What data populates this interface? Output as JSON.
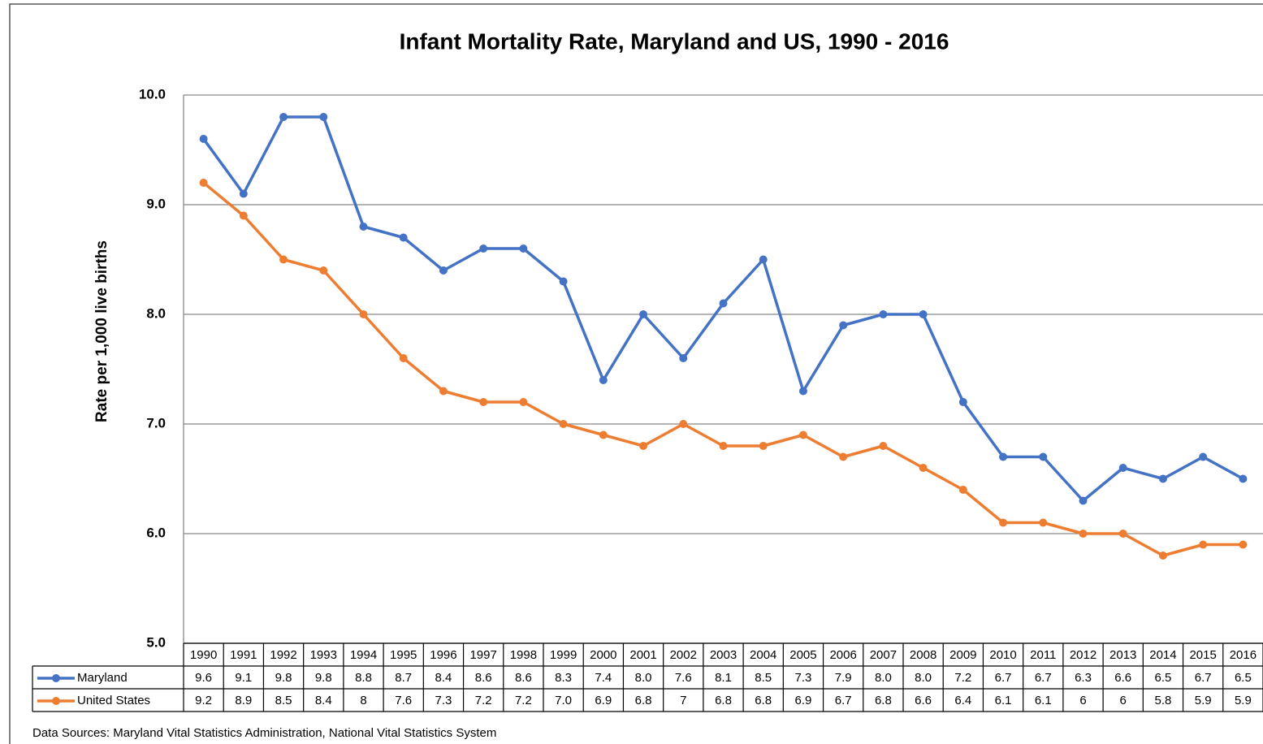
{
  "chart_data": {
    "type": "line",
    "title": "Infant Mortality Rate, Maryland and US, 1990 - 2016",
    "y_label": "Rate per 1,000 live births",
    "source": "Data Sources: Maryland Vital Statistics Administration, National Vital Statistics System",
    "categories": [
      "1990",
      "1991",
      "1992",
      "1993",
      "1994",
      "1995",
      "1996",
      "1997",
      "1998",
      "1999",
      "2000",
      "2001",
      "2002",
      "2003",
      "2004",
      "2005",
      "2006",
      "2007",
      "2008",
      "2009",
      "2010",
      "2011",
      "2012",
      "2013",
      "2014",
      "2015",
      "2016"
    ],
    "series": [
      {
        "name": "Maryland",
        "color": "#4472c4",
        "values": [
          9.6,
          9.1,
          9.8,
          9.8,
          8.8,
          8.7,
          8.4,
          8.6,
          8.6,
          8.3,
          7.4,
          8.0,
          7.6,
          8.1,
          8.5,
          7.3,
          7.9,
          8.0,
          8.0,
          7.2,
          6.7,
          6.7,
          6.3,
          6.6,
          6.5,
          6.7,
          6.5
        ],
        "value_labels": [
          "9.6",
          "9.1",
          "9.8",
          "9.8",
          "8.8",
          "8.7",
          "8.4",
          "8.6",
          "8.6",
          "8.3",
          "7.4",
          "8.0",
          "7.6",
          "8.1",
          "8.5",
          "7.3",
          "7.9",
          "8.0",
          "8.0",
          "7.2",
          "6.7",
          "6.7",
          "6.3",
          "6.6",
          "6.5",
          "6.7",
          "6.5"
        ]
      },
      {
        "name": "United States",
        "color": "#ed7d31",
        "values": [
          9.2,
          8.9,
          8.5,
          8.4,
          8,
          7.6,
          7.3,
          7.2,
          7.2,
          7.0,
          6.9,
          6.8,
          7,
          6.8,
          6.8,
          6.9,
          6.7,
          6.8,
          6.6,
          6.4,
          6.1,
          6.1,
          6,
          6,
          5.8,
          5.9,
          5.9
        ],
        "value_labels": [
          "9.2",
          "8.9",
          "8.5",
          "8.4",
          "8",
          "7.6",
          "7.3",
          "7.2",
          "7.2",
          "7.0",
          "6.9",
          "6.8",
          "7",
          "6.8",
          "6.8",
          "6.9",
          "6.7",
          "6.8",
          "6.6",
          "6.4",
          "6.1",
          "6.1",
          "6",
          "6",
          "5.8",
          "5.9",
          "5.9"
        ]
      }
    ],
    "ylim": [
      5,
      10
    ],
    "yticks": [
      {
        "value": 5,
        "label": "5.0"
      },
      {
        "value": 6,
        "label": "6.0"
      },
      {
        "value": 7,
        "label": "7.0"
      },
      {
        "value": 8,
        "label": "8.0"
      },
      {
        "value": 9,
        "label": "9.0"
      },
      {
        "value": 10,
        "label": "10.0"
      }
    ],
    "grid": true
  }
}
